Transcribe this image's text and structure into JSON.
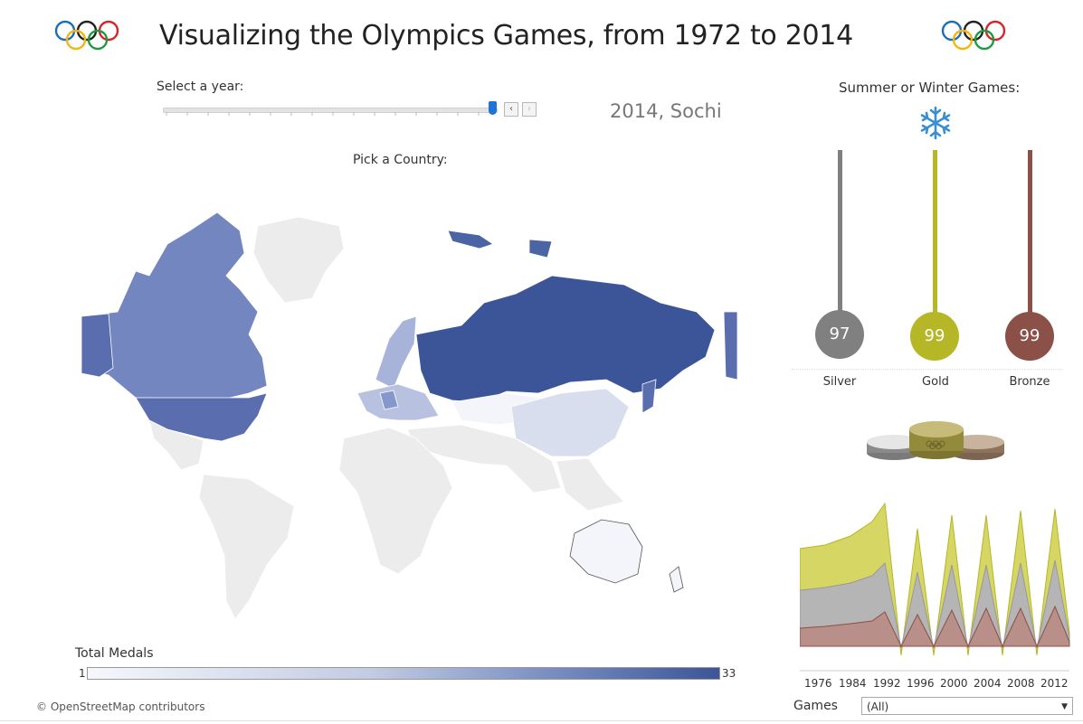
{
  "header": {
    "title": "Visualizing the Olympics Games, from 1972 to 2014"
  },
  "year_control": {
    "label": "Select a year:",
    "selected_label": "2014, Sochi",
    "prev_button": "‹",
    "next_button": "›"
  },
  "map": {
    "label": "Pick a Country:",
    "legend_title": "Total Medals",
    "legend_min": "1",
    "legend_max": "33",
    "attribution": "© OpenStreetMap contributors",
    "color_low": "#f5f7fb",
    "color_high": "#3b5598"
  },
  "season": {
    "label": "Summer or Winter Games:",
    "icon": "snowflake-icon"
  },
  "medals": {
    "silver": {
      "label": "Silver",
      "value": "97",
      "color": "#808080"
    },
    "gold": {
      "label": "Gold",
      "value": "99",
      "color": "#b5b726"
    },
    "bronze": {
      "label": "Bronze",
      "value": "99",
      "color": "#8b5047"
    }
  },
  "chart_data": {
    "type": "area",
    "x_tick_labels": [
      "1976",
      "1984",
      "1992",
      "1996",
      "2000",
      "2004",
      "2008",
      "2012"
    ],
    "series": [
      {
        "name": "Gold",
        "color": "#d6d665"
      },
      {
        "name": "Silver",
        "color": "#b5b5b5"
      },
      {
        "name": "Bronze",
        "color": "#b89089"
      }
    ]
  },
  "filter": {
    "label": "Games",
    "value": "(All)"
  }
}
